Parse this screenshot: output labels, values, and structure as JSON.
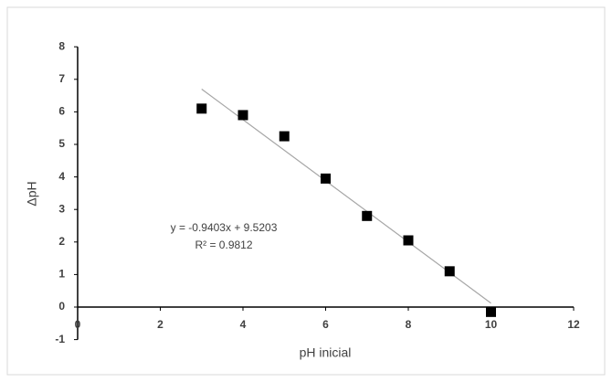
{
  "chart_data": {
    "type": "scatter",
    "x_label": "pH inicial",
    "y_label": "ΔpH",
    "series": [
      {
        "x": [
          3,
          4,
          5,
          6,
          7,
          8,
          9,
          10
        ],
        "values": [
          6.1,
          5.9,
          5.25,
          3.95,
          2.8,
          2.05,
          1.1,
          -0.15
        ],
        "color": "#000000"
      }
    ],
    "trendline": {
      "x": [
        3,
        10
      ],
      "values": [
        6.7,
        0.12
      ],
      "color": "#a6a6a6"
    },
    "annotations": [
      "y = -0.9403x + 9.5203",
      "R² = 0.9812"
    ],
    "xlim": [
      0,
      12
    ],
    "xticks": [
      0,
      2,
      4,
      6,
      8,
      10,
      12
    ],
    "ylim": [
      -1,
      8
    ],
    "yticks": [
      -1,
      0,
      1,
      2,
      3,
      4,
      5,
      6,
      7,
      8
    ],
    "grid": false
  }
}
